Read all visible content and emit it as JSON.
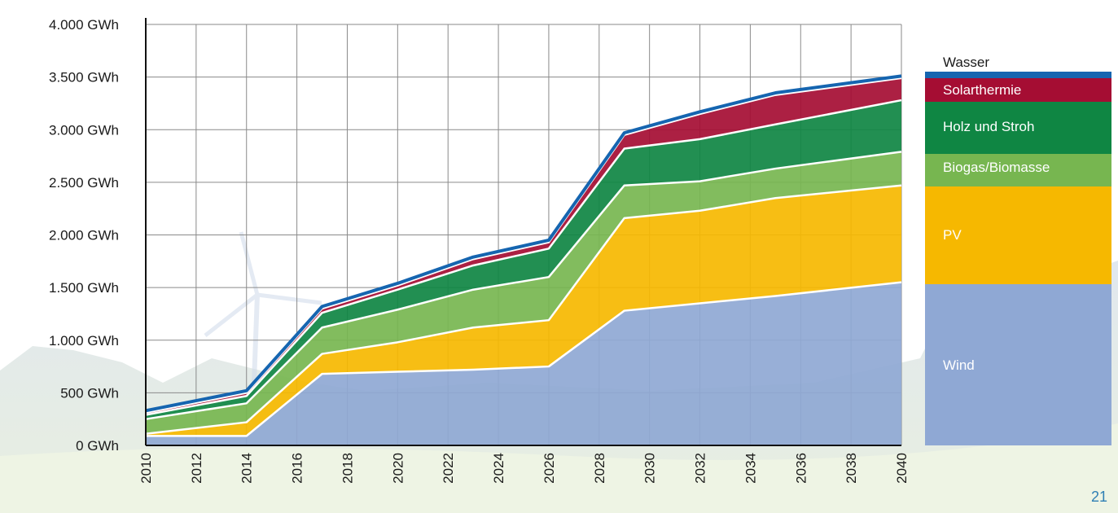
{
  "chart_data": {
    "type": "area",
    "stacked": true,
    "x": [
      2010,
      2014,
      2017,
      2020,
      2023,
      2026,
      2029,
      2032,
      2035,
      2040
    ],
    "x_ticks": [
      "2010",
      "2012",
      "2014",
      "2016",
      "2018",
      "2020",
      "2022",
      "2024",
      "2026",
      "2028",
      "2030",
      "2032",
      "2034",
      "2036",
      "2038",
      "2040"
    ],
    "y_ticks": [
      "0 GWh",
      "500 GWh",
      "1.000 GWh",
      "1.500 GWh",
      "2.000 GWh",
      "2.500 GWh",
      "3.000 GWh",
      "3.500 GWh",
      "4.000 GWh"
    ],
    "ylim": [
      0,
      4000
    ],
    "xlim": [
      2010,
      2040
    ],
    "grid": true,
    "legend_position": "right",
    "series": [
      {
        "name": "Wind",
        "color": "#8fa8d4",
        "values": [
          90,
          90,
          680,
          700,
          720,
          750,
          1280,
          1350,
          1420,
          1550
        ]
      },
      {
        "name": "PV",
        "color": "#f6b800",
        "values": [
          20,
          130,
          190,
          280,
          400,
          440,
          880,
          880,
          930,
          920
        ]
      },
      {
        "name": "Biogas/Biomasse",
        "color": "#77b650",
        "values": [
          140,
          180,
          250,
          310,
          360,
          410,
          310,
          280,
          280,
          320
        ]
      },
      {
        "name": "Holz und Stroh",
        "color": "#0f8643",
        "values": [
          40,
          70,
          140,
          190,
          230,
          270,
          350,
          400,
          420,
          490
        ]
      },
      {
        "name": "Solarthermie",
        "color": "#a50d33",
        "values": [
          20,
          30,
          40,
          40,
          60,
          60,
          130,
          240,
          280,
          210
        ]
      },
      {
        "name": "Wasser",
        "color": "#1565b0",
        "values": [
          20,
          20,
          20,
          20,
          20,
          20,
          20,
          20,
          20,
          20
        ]
      }
    ]
  },
  "legend": [
    {
      "label": "Wasser",
      "color": "#1565b0",
      "text_color": "#1a1a1a"
    },
    {
      "label": "Solarthermie",
      "color": "#a50d33",
      "text_color": "#ffffff"
    },
    {
      "label": "Holz und Stroh",
      "color": "#0f8643",
      "text_color": "#ffffff"
    },
    {
      "label": "Biogas/Biomasse",
      "color": "#77b650",
      "text_color": "#ffffff"
    },
    {
      "label": "PV",
      "color": "#f6b800",
      "text_color": "#ffffff"
    },
    {
      "label": "Wind",
      "color": "#8fa8d4",
      "text_color": "#ffffff"
    }
  ],
  "page_number": "21"
}
